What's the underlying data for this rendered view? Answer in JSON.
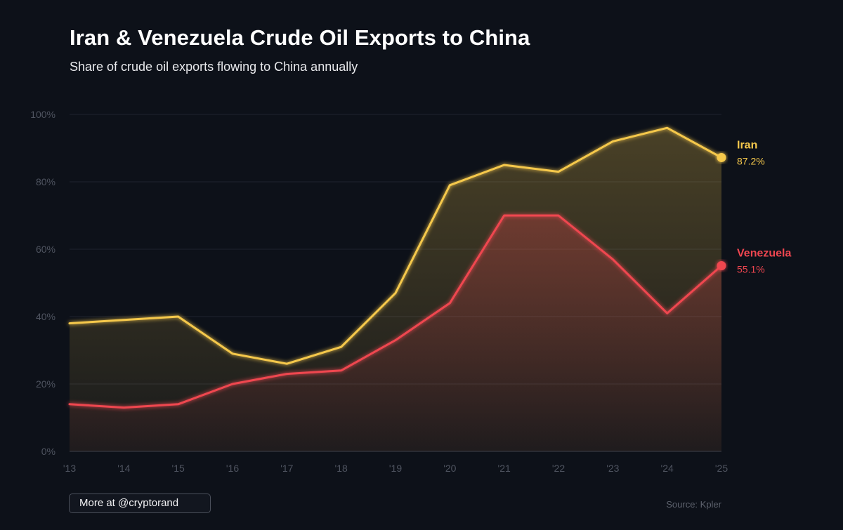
{
  "chart_data": {
    "type": "area",
    "title": "Iran & Venezuela Crude Oil Exports to China",
    "subtitle": "Share of crude oil exports flowing to China annually",
    "xlabel": "",
    "ylabel": "",
    "categories": [
      "'13",
      "'14",
      "'15",
      "'16",
      "'17",
      "'18",
      "'19",
      "'20",
      "'21",
      "'22",
      "'23",
      "'24",
      "'25"
    ],
    "ylim": [
      0,
      100
    ],
    "yticks": [
      0,
      20,
      40,
      60,
      80,
      100
    ],
    "ytick_labels": [
      "0%",
      "20%",
      "40%",
      "60%",
      "80%",
      "100%"
    ],
    "grid": true,
    "series": [
      {
        "name": "Iran",
        "color": "#f5c84c",
        "values": [
          38,
          39,
          40,
          29,
          26,
          31,
          47,
          79,
          85,
          83,
          92,
          96,
          87.2
        ],
        "end_label": "87.2%"
      },
      {
        "name": "Venezuela",
        "color": "#ef4650",
        "values": [
          14,
          13,
          14,
          20,
          23,
          24,
          33,
          44,
          70,
          70,
          57,
          41,
          55.1
        ],
        "end_label": "55.1%"
      }
    ],
    "legend_placement": "right-end-labels"
  },
  "footer": {
    "more_label": "More at @cryptorand",
    "source_label": "Source: Kpler"
  }
}
